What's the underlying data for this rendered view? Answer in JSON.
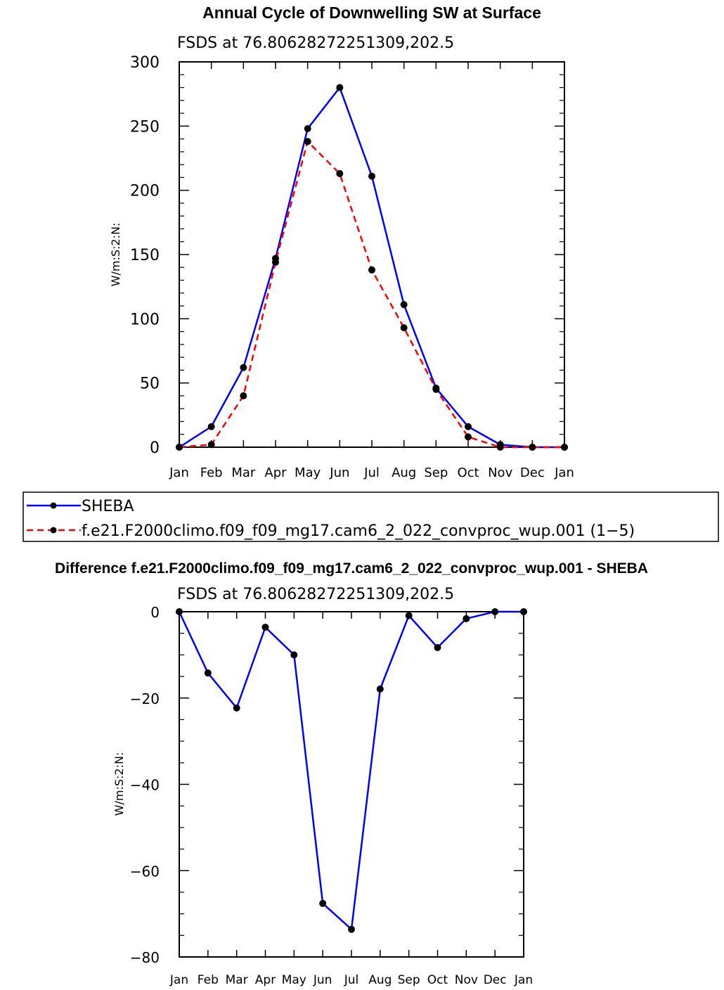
{
  "chart_data": [
    {
      "type": "line",
      "title": "Annual Cycle of Downwelling SW at Surface",
      "subtitle": "FSDS at 76.80628272251309,202.5",
      "ylabel": "W/m:S:2:N:",
      "xlabel": "",
      "categories": [
        "Jan",
        "Feb",
        "Mar",
        "Apr",
        "May",
        "Jun",
        "Jul",
        "Aug",
        "Sep",
        "Oct",
        "Nov",
        "Dec",
        "Jan"
      ],
      "ylim": [
        0,
        300
      ],
      "yticks": [
        0,
        50,
        100,
        150,
        200,
        250,
        300
      ],
      "series": [
        {
          "name": "SHEBA",
          "color": "#0000ff",
          "dash": "solid",
          "values": [
            0,
            16,
            62,
            147,
            248,
            280,
            211,
            111,
            46,
            16,
            2,
            0,
            0
          ]
        },
        {
          "name": "f.e21.F2000climo.f09_f09_mg17.cam6_2_022_convproc_wup.001 (1−5)",
          "color": "#ff0000",
          "dash": "dashed",
          "values": [
            0,
            2,
            40,
            144,
            238,
            213,
            138,
            93,
            45,
            8,
            0,
            0,
            0
          ]
        }
      ]
    },
    {
      "type": "line",
      "title": "Difference f.e21.F2000climo.f09_f09_mg17.cam6_2_022_convproc_wup.001 - SHEBA",
      "subtitle": "FSDS at 76.80628272251309,202.5",
      "ylabel": "W/m:S:2:N:",
      "xlabel": "",
      "categories": [
        "Jan",
        "Feb",
        "Mar",
        "Apr",
        "May",
        "Jun",
        "Jul",
        "Aug",
        "Sep",
        "Oct",
        "Nov",
        "Dec",
        "Jan"
      ],
      "ylim": [
        -80,
        0
      ],
      "yticks": [
        -80,
        -60,
        -40,
        -20,
        0
      ],
      "series": [
        {
          "name": "Difference",
          "color": "#0000ff",
          "dash": "solid",
          "values": [
            0,
            -14.2,
            -22.3,
            -3.6,
            -10,
            -67.6,
            -73.6,
            -17.9,
            -0.9,
            -8.3,
            -1.6,
            0,
            0
          ]
        }
      ]
    }
  ]
}
